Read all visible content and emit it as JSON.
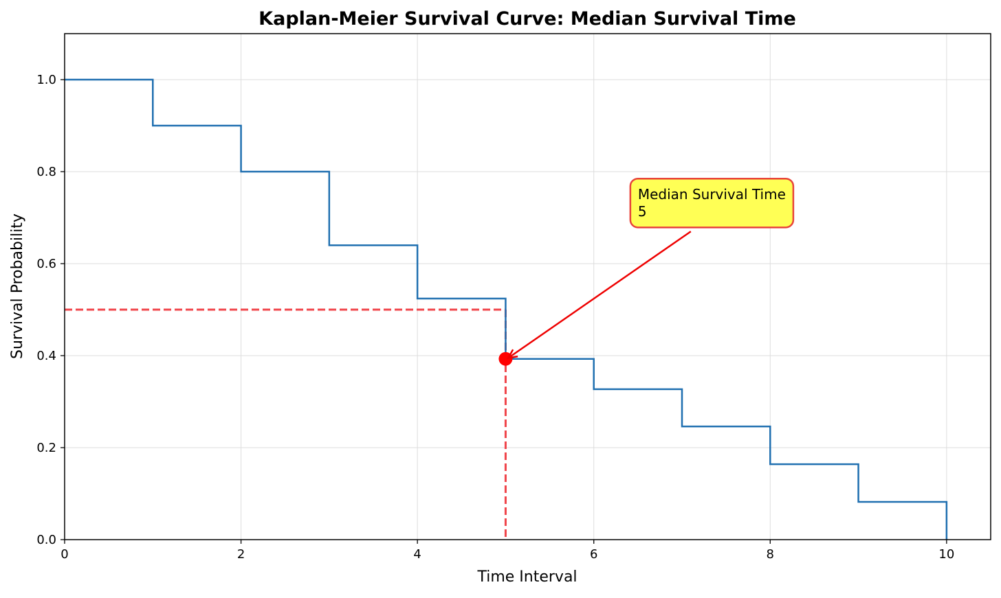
{
  "chart_data": {
    "type": "line",
    "title": "Kaplan-Meier Survival Curve: Median Survival Time",
    "xlabel": "Time Interval",
    "ylabel": "Survival Probability",
    "xlim": [
      0,
      10.5
    ],
    "ylim": [
      0,
      1.1
    ],
    "xticks": [
      0,
      2,
      4,
      6,
      8,
      10
    ],
    "yticks": [
      0.0,
      0.2,
      0.4,
      0.6,
      0.8,
      1.0
    ],
    "xtick_labels": [
      "0",
      "2",
      "4",
      "6",
      "8",
      "10"
    ],
    "ytick_labels": [
      "0.0",
      "0.2",
      "0.4",
      "0.6",
      "0.8",
      "1.0"
    ],
    "grid": true,
    "series": [
      {
        "step": "post",
        "color": "#1f6fb0",
        "x": [
          0,
          1,
          2,
          3,
          4,
          5,
          6,
          7,
          8,
          9,
          10
        ],
        "y": [
          1.0,
          0.9,
          0.8,
          0.64,
          0.524,
          0.393,
          0.327,
          0.246,
          0.164,
          0.082,
          0.0
        ]
      }
    ],
    "reference_lines": [
      {
        "orientation": "horizontal",
        "y": 0.5,
        "x_from": 0,
        "x_to": 5,
        "color": "#f0444a",
        "style": "dashed"
      },
      {
        "orientation": "vertical",
        "x": 5,
        "y_from": 0,
        "y_to": 0.5,
        "color": "#f0444a",
        "style": "dashed"
      }
    ],
    "marker": {
      "x": 5,
      "y": 0.393,
      "color": "#ff0000"
    },
    "annotation": {
      "lines": [
        "Median Survival Time",
        "5"
      ],
      "text_anchor": {
        "x": 6.5,
        "y": 0.74
      },
      "arrow_from": {
        "x": 7.1,
        "y": 0.67
      },
      "arrow_to": {
        "x": 5.03,
        "y": 0.395
      },
      "box_color": "#ffff55",
      "border_color": "#e8443a",
      "arrow_color": "#ee0000"
    }
  }
}
